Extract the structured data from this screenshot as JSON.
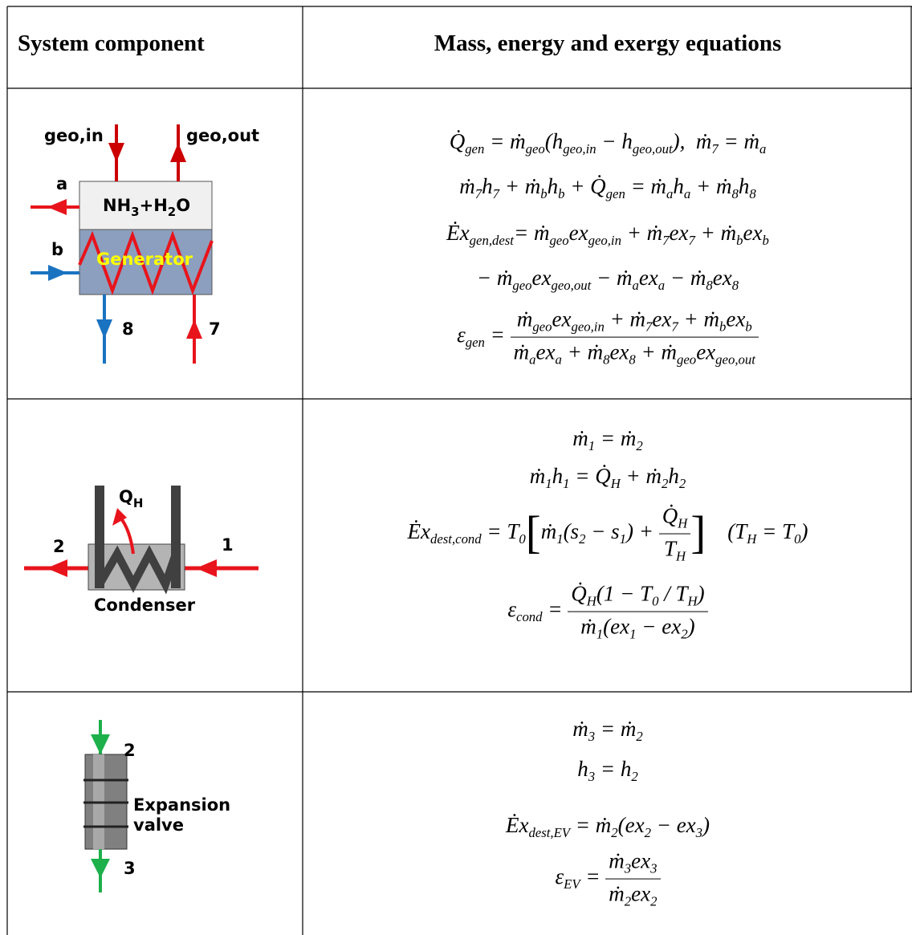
{
  "table": {
    "header": [
      "System component",
      "Mass, energy and exergy equations"
    ],
    "rows": [
      {
        "component": {
          "inlet": "geo,in",
          "outlet": "geo,out",
          "stream_a": "a",
          "mixture": [
            "NH",
            {
              "sub": "3"
            },
            "+H",
            {
              "sub": "2"
            },
            "O"
          ],
          "stream_b": "b",
          "name": "Generator",
          "stream_8": "8",
          "stream_7": "7"
        },
        "equations": [
          [
            "Q̇",
            {
              "sub": "gen"
            },
            " = ṁ",
            {
              "sub": "geo"
            },
            "(h",
            {
              "sub": "geo,in"
            },
            " − h",
            {
              "sub": "geo,out"
            },
            "),  ṁ",
            {
              "sub": "7"
            },
            " = ṁ",
            {
              "sub": "a"
            }
          ],
          [
            "ṁ",
            {
              "sub": "7"
            },
            "h",
            {
              "sub": "7"
            },
            " + ṁ",
            {
              "sub": "b"
            },
            "h",
            {
              "sub": "b"
            },
            " + Q̇",
            {
              "sub": "gen"
            },
            " = ṁ",
            {
              "sub": "a"
            },
            "h",
            {
              "sub": "a"
            },
            " + ṁ",
            {
              "sub": "8"
            },
            "h",
            {
              "sub": "8"
            }
          ],
          [
            "Ėx",
            {
              "sub": "gen,dest"
            },
            "= ṁ",
            {
              "sub": "geo"
            },
            "ex",
            {
              "sub": "geo,in"
            },
            " + ṁ",
            {
              "sub": "7"
            },
            "ex",
            {
              "sub": "7"
            },
            " + ṁ",
            {
              "sub": "b"
            },
            "ex",
            {
              "sub": "b"
            }
          ],
          [
            "− ṁ",
            {
              "sub": "geo"
            },
            "ex",
            {
              "sub": "geo,out"
            },
            " − ṁ",
            {
              "sub": "a"
            },
            "ex",
            {
              "sub": "a"
            },
            " − ṁ",
            {
              "sub": "8"
            },
            "ex",
            {
              "sub": "8"
            }
          ],
          [
            "ε",
            {
              "sub": "gen"
            },
            " = ",
            {
              "frac": {
                "num": [
                  "ṁ",
                  {
                    "sub": "geo"
                  },
                  "ex",
                  {
                    "sub": "geo,in"
                  },
                  " + ṁ",
                  {
                    "sub": "7"
                  },
                  "ex",
                  {
                    "sub": "7"
                  },
                  " + ṁ",
                  {
                    "sub": "b"
                  },
                  "ex",
                  {
                    "sub": "b"
                  }
                ],
                "den": [
                  "ṁ",
                  {
                    "sub": "a"
                  },
                  "ex",
                  {
                    "sub": "a"
                  },
                  " + ṁ",
                  {
                    "sub": "8"
                  },
                  "ex",
                  {
                    "sub": "8"
                  },
                  " + ṁ",
                  {
                    "sub": "geo"
                  },
                  "ex",
                  {
                    "sub": "geo,out"
                  }
                ]
              }
            }
          ]
        ]
      },
      {
        "component": {
          "heat": [
            "Q",
            {
              "sub": "H"
            }
          ],
          "stream_2": "2",
          "stream_1": "1",
          "name": "Condenser"
        },
        "equations": [
          [
            "ṁ",
            {
              "sub": "1"
            },
            " = ṁ",
            {
              "sub": "2"
            }
          ],
          [
            "ṁ",
            {
              "sub": "1"
            },
            "h",
            {
              "sub": "1"
            },
            " = Q̇",
            {
              "sub": "H"
            },
            " + ṁ",
            {
              "sub": "2"
            },
            "h",
            {
              "sub": "2"
            }
          ],
          [
            "Ėx",
            {
              "sub": "dest,cond"
            },
            " = T",
            {
              "sub": "0"
            },
            "[",
            "ṁ",
            {
              "sub": "1"
            },
            "(s",
            {
              "sub": "2"
            },
            " − s",
            {
              "sub": "1"
            },
            ") + ",
            {
              "frac": {
                "num": [
                  "Q̇",
                  {
                    "sub": "H"
                  }
                ],
                "den": [
                  "T",
                  {
                    "sub": "H"
                  }
                ]
              }
            },
            "]",
            "    (T",
            {
              "sub": "H"
            },
            " = T",
            {
              "sub": "0"
            },
            ")"
          ],
          [
            "ε",
            {
              "sub": "cond"
            },
            " = ",
            {
              "frac": {
                "num": [
                  "Q̇",
                  {
                    "sub": "H"
                  },
                  "(1 − T",
                  {
                    "sub": "0"
                  },
                  " / T",
                  {
                    "sub": "H"
                  },
                  ")"
                ],
                "den": [
                  "ṁ",
                  {
                    "sub": "1"
                  },
                  "(ex",
                  {
                    "sub": "1"
                  },
                  " − ex",
                  {
                    "sub": "2"
                  },
                  ")"
                ]
              }
            }
          ]
        ]
      },
      {
        "component": {
          "stream_2": "2",
          "stream_3": "3",
          "name": [
            "Expansion",
            "valve"
          ]
        },
        "equations": [
          [
            "ṁ",
            {
              "sub": "3"
            },
            " = ṁ",
            {
              "sub": "2"
            }
          ],
          [
            "h",
            {
              "sub": "3"
            },
            " = h",
            {
              "sub": "2"
            }
          ],
          [
            "Ėx",
            {
              "sub": "dest,EV"
            },
            " = ṁ",
            {
              "sub": "2"
            },
            "(ex",
            {
              "sub": "2"
            },
            " − ex",
            {
              "sub": "3"
            },
            ")"
          ],
          [
            "ε",
            {
              "sub": "EV"
            },
            " = ",
            {
              "frac": {
                "num": [
                  "ṁ",
                  {
                    "sub": "3"
                  },
                  "ex",
                  {
                    "sub": "3"
                  }
                ],
                "den": [
                  "ṁ",
                  {
                    "sub": "2"
                  },
                  "ex",
                  {
                    "sub": "2"
                  }
                ]
              }
            }
          ]
        ]
      }
    ]
  }
}
